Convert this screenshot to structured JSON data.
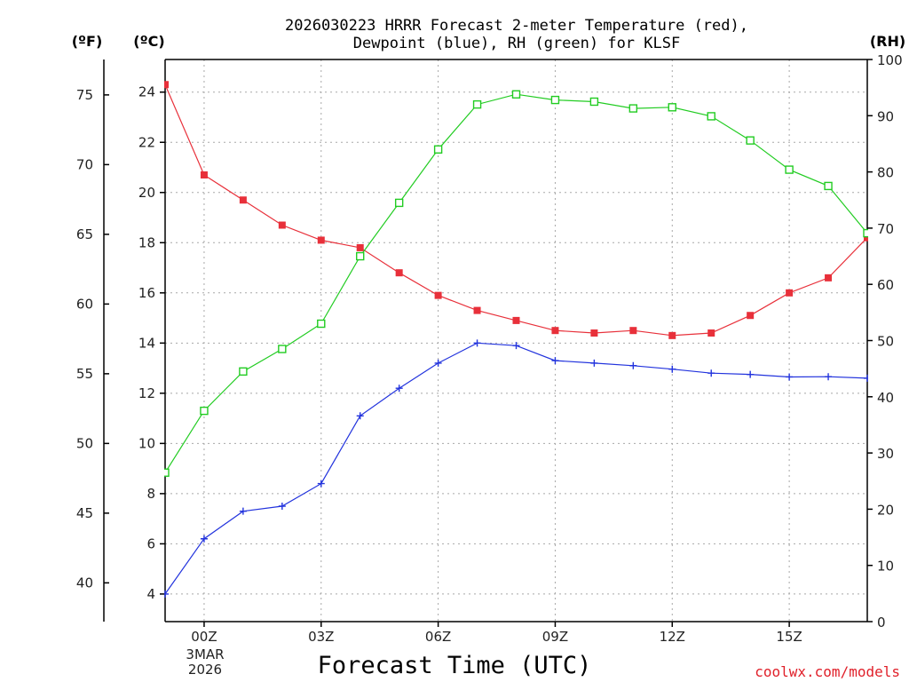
{
  "chart_data": {
    "type": "line",
    "title_line1": "2026030223 HRRR Forecast 2-meter Temperature (red),",
    "title_line2": "Dewpoint (blue), RH (green) for KLSF",
    "xlabel": "Forecast Time (UTC)",
    "credit": "coolwx.com/models",
    "left_unit_f": "(ºF)",
    "left_unit_c": "(ºC)",
    "right_unit": "(RH)",
    "x_hours": [
      -1,
      0,
      1,
      2,
      3,
      4,
      5,
      6,
      7,
      8,
      9,
      10,
      11,
      12,
      13,
      14,
      15,
      16,
      17
    ],
    "xlim": [
      -1,
      17
    ],
    "x_ticks": [
      {
        "hour": 0,
        "label": "00Z"
      },
      {
        "hour": 3,
        "label": "03Z"
      },
      {
        "hour": 6,
        "label": "06Z"
      },
      {
        "hour": 9,
        "label": "09Z"
      },
      {
        "hour": 12,
        "label": "12Z"
      },
      {
        "hour": 15,
        "label": "15Z"
      }
    ],
    "x_date_line1": "3MAR",
    "x_date_line2": "2026",
    "ylim_c": [
      2.9,
      25.3
    ],
    "c_ticks": [
      4,
      6,
      8,
      10,
      12,
      14,
      16,
      18,
      20,
      22,
      24
    ],
    "f_ticks": [
      40,
      45,
      50,
      55,
      60,
      65,
      70,
      75
    ],
    "ylim_rh": [
      0,
      100
    ],
    "rh_ticks": [
      0,
      10,
      20,
      30,
      40,
      50,
      60,
      70,
      80,
      90,
      100
    ],
    "series": [
      {
        "name": "2-meter Temperature",
        "unit": "C",
        "color": "#e8303a",
        "marker": "filled-square",
        "values": [
          24.3,
          20.7,
          19.7,
          18.7,
          18.1,
          17.8,
          16.8,
          15.9,
          15.3,
          14.9,
          14.5,
          14.4,
          14.5,
          14.3,
          14.4,
          15.1,
          16.0,
          16.6,
          18.2
        ]
      },
      {
        "name": "Dewpoint",
        "unit": "C",
        "color": "#2233dd",
        "marker": "plus",
        "values": [
          4.0,
          6.2,
          7.3,
          7.5,
          8.4,
          11.1,
          12.2,
          13.2,
          14.0,
          13.9,
          13.3,
          13.2,
          13.1,
          12.96,
          12.8,
          12.75,
          12.65,
          12.66,
          12.6
        ]
      },
      {
        "name": "RH",
        "unit": "%",
        "color": "#22cc22",
        "marker": "open-square",
        "values": [
          26.5,
          37.5,
          44.5,
          48.5,
          53,
          65,
          74.5,
          84,
          92,
          93.8,
          92.8,
          92.5,
          91.3,
          91.5,
          89.9,
          85.6,
          80.4,
          77.5,
          69.1
        ]
      }
    ]
  }
}
